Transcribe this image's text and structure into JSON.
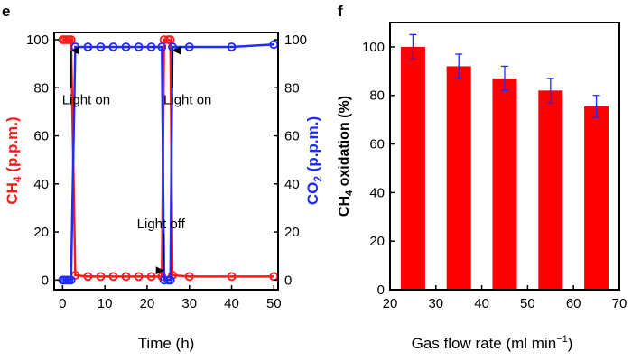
{
  "panels": {
    "e": "e",
    "f": "f"
  },
  "chart_data": [
    {
      "type": "line",
      "panel": "e",
      "xlabel": "Time (h)",
      "ylabel_left": "CH4 (p.p.m.)",
      "ylabel_right": "CO2 (p.p.m.)",
      "xlim": [
        -2,
        51
      ],
      "ylim": [
        -4,
        103
      ],
      "xticks": [
        "0",
        "10",
        "20",
        "30",
        "40",
        "50"
      ],
      "yticks_left": [
        "0",
        "20",
        "40",
        "60",
        "80",
        "100"
      ],
      "yticks_right": [
        "0",
        "20",
        "40",
        "60",
        "80",
        "100"
      ],
      "grid": false,
      "series": [
        {
          "name": "CH4",
          "axis": "left",
          "color": "#ff1a1a",
          "x": [
            0,
            0.5,
            1,
            1.5,
            2,
            3,
            6,
            9,
            12,
            15,
            18,
            21,
            23.5,
            24,
            25,
            25.5,
            26,
            30,
            40,
            50
          ],
          "y": [
            100,
            100,
            100,
            100,
            100,
            2,
            1.5,
            1.5,
            1.5,
            1.5,
            1.5,
            1.5,
            1.5,
            100,
            100,
            100,
            2,
            1.5,
            1.5,
            1.5
          ]
        },
        {
          "name": "CO2",
          "axis": "right",
          "color": "#1f2bff",
          "x": [
            0,
            0.5,
            1,
            1.5,
            2,
            3,
            6,
            9,
            12,
            15,
            18,
            21,
            23.5,
            24,
            25,
            25.5,
            26,
            30,
            40,
            50
          ],
          "y": [
            0,
            0,
            0,
            0,
            0,
            97,
            97,
            97,
            97,
            97,
            97,
            97,
            97,
            0,
            0,
            0,
            97,
            97,
            97,
            98
          ]
        }
      ],
      "annotations": [
        {
          "text": "Light on",
          "x": 2,
          "y": 77
        },
        {
          "text": "Light on",
          "x": 26,
          "y": 77
        },
        {
          "text": "Light off",
          "x": 24,
          "y": 23
        }
      ]
    },
    {
      "type": "bar",
      "panel": "f",
      "xlabel": "Gas flow rate (ml min⁻¹)",
      "ylabel": "CH4 oxidation (%)",
      "xlim": [
        20,
        70
      ],
      "ylim": [
        0,
        110
      ],
      "xticks": [
        "20",
        "30",
        "40",
        "50",
        "60",
        "70"
      ],
      "yticks": [
        "0",
        "20",
        "40",
        "60",
        "80",
        "100"
      ],
      "color": "#ff0000",
      "x": [
        25,
        35,
        45,
        55,
        65
      ],
      "values": [
        100,
        92,
        87,
        82,
        75.5
      ],
      "errors": [
        5,
        5,
        5,
        5,
        4.5
      ],
      "grid": false
    }
  ]
}
